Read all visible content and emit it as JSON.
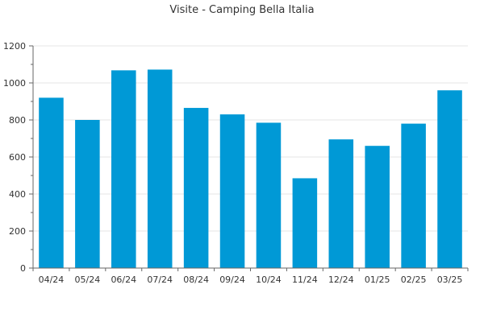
{
  "chart_data": {
    "type": "bar",
    "title": "Visite - Camping Bella Italia",
    "xlabel": "",
    "ylabel": "",
    "categories": [
      "04/24",
      "05/24",
      "06/24",
      "07/24",
      "08/24",
      "09/24",
      "10/24",
      "11/24",
      "12/24",
      "01/25",
      "02/25",
      "03/25"
    ],
    "values": [
      920,
      800,
      1068,
      1072,
      865,
      830,
      785,
      485,
      695,
      660,
      780,
      960
    ],
    "ylim": [
      0,
      1200
    ],
    "yticks": [
      0,
      200,
      400,
      600,
      800,
      1000,
      1200
    ],
    "ytick_labels": [
      "0",
      "200",
      "400",
      "600",
      "800",
      "1000",
      "1200"
    ],
    "grid": true,
    "legend": "none",
    "colors": {
      "bar": "#0099d6",
      "grid": "#e6e6e6",
      "axis": "#666666",
      "text": "#333333"
    }
  }
}
